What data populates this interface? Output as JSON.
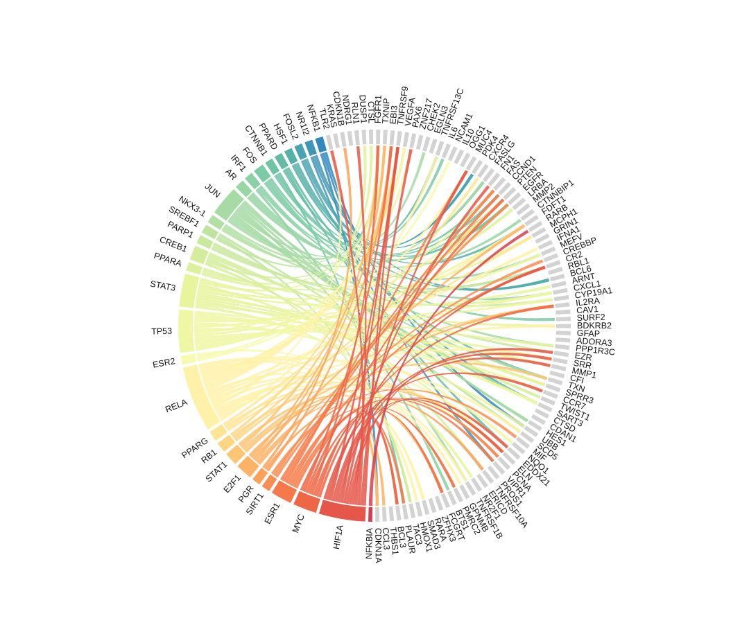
{
  "chart_data": {
    "type": "chord",
    "sources": [
      {
        "name": "NFKB1",
        "size": 1.2,
        "color": "#3288bd"
      },
      {
        "name": "NR1I2",
        "size": 1.2,
        "color": "#3f96b7"
      },
      {
        "name": "FOSL2",
        "size": 1.2,
        "color": "#4aa3b0"
      },
      {
        "name": "HSF1",
        "size": 1.2,
        "color": "#55b0a8"
      },
      {
        "name": "PPARD",
        "size": 1.2,
        "color": "#62bba3"
      },
      {
        "name": "CTNNB1",
        "size": 1.2,
        "color": "#6ec4a4"
      },
      {
        "name": "FOS",
        "size": 1.6,
        "color": "#7bcba4"
      },
      {
        "name": "IRF1",
        "size": 1.3,
        "color": "#8ad1a4"
      },
      {
        "name": "AR",
        "size": 1.4,
        "color": "#98d6a4"
      },
      {
        "name": "JUN",
        "size": 4.5,
        "color": "#a6dba4"
      },
      {
        "name": "NKX3-1",
        "size": 1.3,
        "color": "#b2e0a2"
      },
      {
        "name": "SREBF1",
        "size": 1.3,
        "color": "#bee5a0"
      },
      {
        "name": "PARP1",
        "size": 1.3,
        "color": "#c9e99e"
      },
      {
        "name": "CREB1",
        "size": 2.2,
        "color": "#d3ed9c"
      },
      {
        "name": "PPARA",
        "size": 1.3,
        "color": "#ddf19c"
      },
      {
        "name": "STAT3",
        "size": 5.0,
        "color": "#e8f59d"
      },
      {
        "name": "TP53",
        "size": 6.5,
        "color": "#f0f7a4"
      },
      {
        "name": "ESR2",
        "size": 1.3,
        "color": "#f7fab0"
      },
      {
        "name": "RELA",
        "size": 10.0,
        "color": "#fff2a8"
      },
      {
        "name": "PPARG",
        "size": 1.6,
        "color": "#fee595"
      },
      {
        "name": "RB1",
        "size": 1.6,
        "color": "#fed683"
      },
      {
        "name": "STAT1",
        "size": 2.0,
        "color": "#fdc574"
      },
      {
        "name": "E2F1",
        "size": 2.5,
        "color": "#fdb366"
      },
      {
        "name": "PGR",
        "size": 1.3,
        "color": "#fca15a"
      },
      {
        "name": "SIRT1",
        "size": 1.3,
        "color": "#f98e52"
      },
      {
        "name": "ESR1",
        "size": 3.2,
        "color": "#f67a49"
      },
      {
        "name": "MYC",
        "size": 3.6,
        "color": "#ee6745"
      },
      {
        "name": "HIF1A",
        "size": 7.0,
        "color": "#e55749"
      },
      {
        "name": "NFKBIA",
        "size": 0.6,
        "color": "#d53e4f"
      }
    ],
    "targets": [
      "CDKN1A",
      "CCL3",
      "THBS1",
      "BCL3",
      "PLAUR",
      "TAC3",
      "HMOX1",
      "SMAD3",
      "RARA",
      "ZFHX3",
      "FCGRT",
      "BTS1",
      "PMRC2",
      "GPNMB",
      "TNFRSF1B",
      "NR2F1",
      "ERICD",
      "TNFRSF10A",
      "PROS1",
      "VIPR1",
      "PCNA",
      "ELN",
      "EDDX21",
      "NQO1",
      "MIF",
      "SCD5",
      "UBB",
      "HES1",
      "CDAN1",
      "CTSD",
      "SART3",
      "TWIST1",
      "CCR7",
      "SPRR3",
      "TXN",
      "CFI",
      "MMP1",
      "SRR",
      "EZR",
      "PPP1R3C",
      "ADORA3",
      "GFAP",
      "BDKRB2",
      "SURF2",
      "CAV1",
      "IL2RA",
      "CYP19A1",
      "CXCL1",
      "ARNT",
      "BCL6",
      "RBL1",
      "CR2",
      "CREBBP",
      "MEFV",
      "IFNA1",
      "GRIN1",
      "MCPH1",
      "RARB",
      "FDFT1",
      "CTNNBIP1",
      "MMP2",
      "LRBA",
      "EGFR",
      "PTEN",
      "CCND1",
      "FAS",
      "FN1",
      "FASLG",
      "CXCR4",
      "PDK4",
      "MUC4",
      "OGG1",
      "IL10",
      "NCAM1",
      "IL6",
      "TNFRSF13C",
      "EGLN3",
      "CHEK2",
      "ZNF217",
      "PAX6",
      "VEGFA",
      "TNFRSF9",
      "EBI3",
      "TXNIP",
      "FGFR1",
      "CTSL",
      "DUSP1",
      "RLN1",
      "NDRG1",
      "CDKN1B",
      "KRAS",
      "TLR2"
    ],
    "colors": {
      "target_block": "#d3d3d3",
      "background": "#ffffff"
    }
  }
}
